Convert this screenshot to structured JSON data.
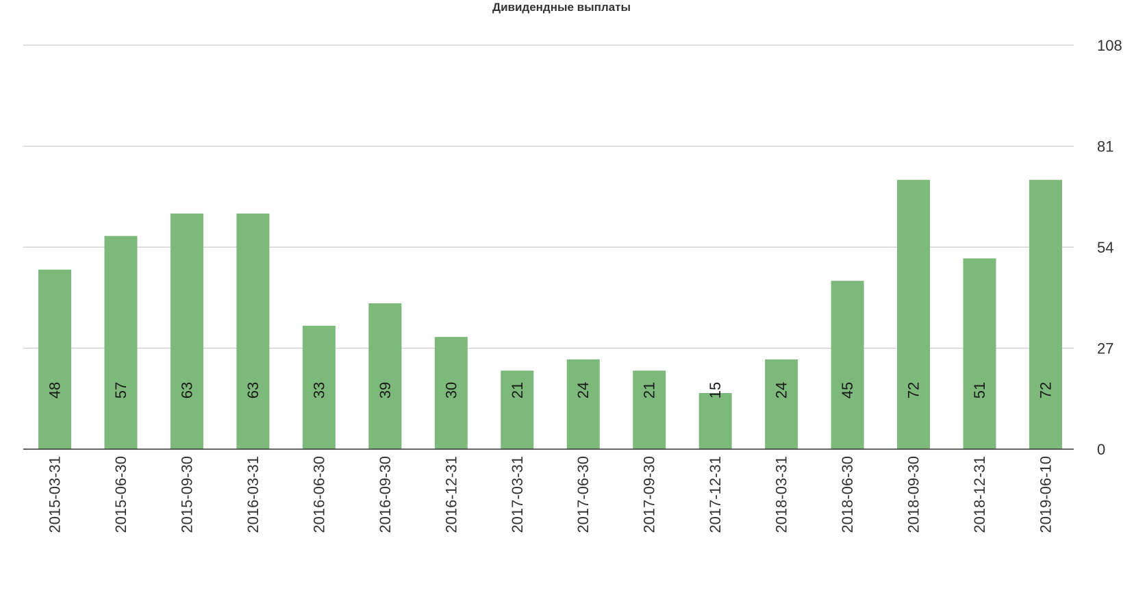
{
  "chart_data": {
    "type": "bar",
    "title": "Дивидендные выплаты",
    "xlabel": "",
    "ylabel": "",
    "categories": [
      "2015-03-31",
      "2015-06-30",
      "2015-09-30",
      "2016-03-31",
      "2016-06-30",
      "2016-09-30",
      "2016-12-31",
      "2017-03-31",
      "2017-06-30",
      "2017-09-30",
      "2017-12-31",
      "2018-03-31",
      "2018-06-30",
      "2018-09-30",
      "2018-12-31",
      "2019-06-10"
    ],
    "values": [
      48,
      57,
      63,
      63,
      33,
      39,
      30,
      21,
      24,
      21,
      15,
      24,
      45,
      72,
      51,
      72
    ],
    "data_labels": [
      "48",
      "57",
      "63",
      "63",
      "33",
      "39",
      "30",
      "21",
      "24",
      "21",
      "15",
      "24",
      "45",
      "72",
      "51",
      "72"
    ],
    "ylim": [
      0,
      108
    ],
    "yticks": [
      0,
      27,
      54,
      81,
      108
    ],
    "ytick_labels": [
      "0",
      "27",
      "54",
      "81",
      "108"
    ],
    "y_axis_side": "right",
    "grid": true,
    "legend": "none",
    "colors": {
      "bar": "#7cb97a",
      "grid": "#cccccc",
      "axis": "#333333",
      "text": "#333333"
    }
  }
}
